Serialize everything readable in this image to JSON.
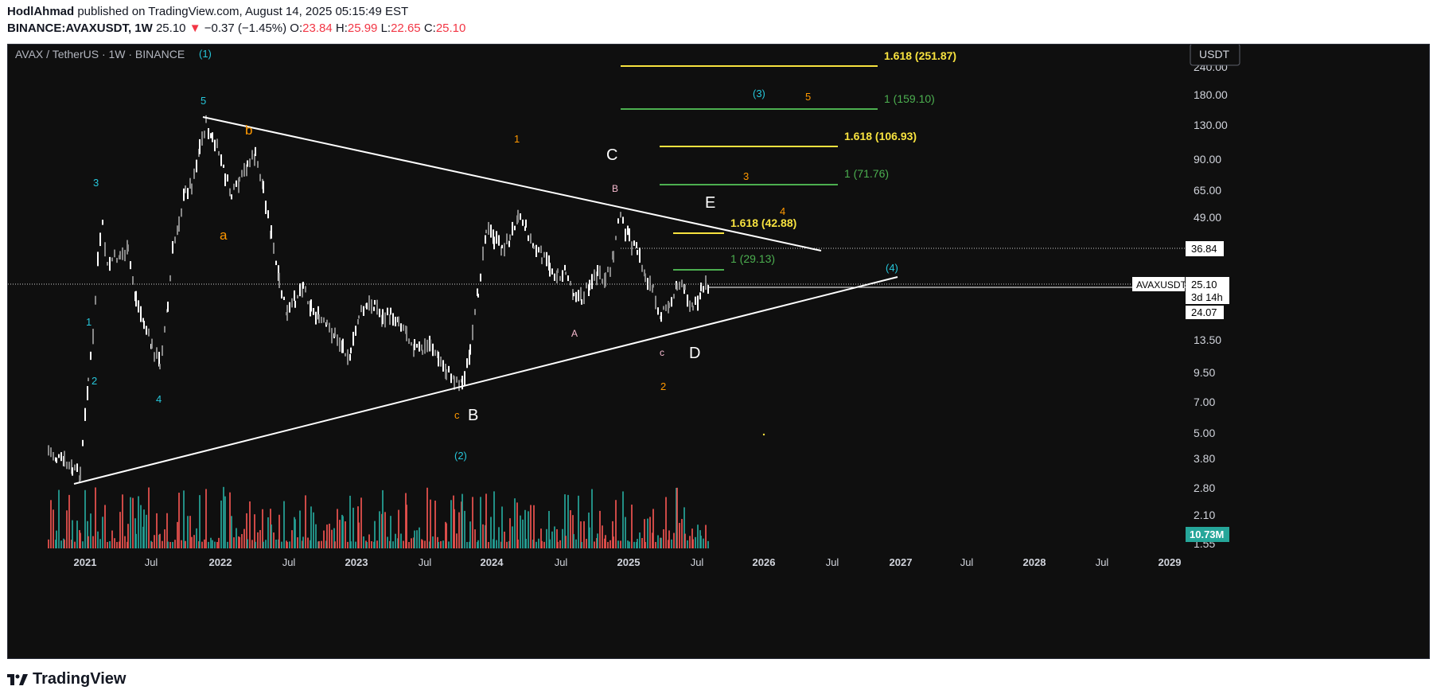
{
  "header": {
    "author": "HodlAhmad",
    "published": "published on TradingView.com, August 14, 2025 05:15:49 EST",
    "symbol": "BINANCE:AVAXUSDT, 1W",
    "last": "25.10",
    "change_arrow": "▼",
    "change": "−0.37 (−1.45%)",
    "o_label": "O:",
    "o": "23.84",
    "h_label": "H:",
    "h": "25.99",
    "l_label": "L:",
    "l": "22.65",
    "c_label": "C:",
    "c": "25.10"
  },
  "chart": {
    "legend": "AVAX / TetherUS · 1W · BINANCE",
    "currency_button": "USDT",
    "price_axis": [
      "240.00",
      "180.00",
      "130.00",
      "90.00",
      "65.00",
      "49.00",
      "36.84",
      "25.10",
      "13.50",
      "9.50",
      "7.00",
      "5.00",
      "3.80",
      "2.80",
      "2.10",
      "1.55"
    ],
    "time_axis": [
      "2021",
      "Jul",
      "2022",
      "Jul",
      "2023",
      "Jul",
      "2024",
      "Jul",
      "2025",
      "Jul",
      "2026",
      "Jul",
      "2027",
      "Jul",
      "2028",
      "Jul",
      "2029"
    ],
    "price_tags": {
      "symbol": "AVAXUSDT",
      "last": "25.10",
      "countdown": "3d 14h",
      "low": "24.07",
      "level": "36.84",
      "volume": "10.73M"
    },
    "fib_labels": {
      "f1": "1.618 (251.87)",
      "f2": "1 (159.10)",
      "f3": "1.618 (106.93)",
      "f4": "1 (71.76)",
      "f5": "1.618 (42.88)",
      "f6": "1 (29.13)"
    },
    "wave_labels": {
      "cyan": [
        "(1)",
        "5",
        "3",
        "1",
        "2",
        "4",
        "(2)",
        "(3)",
        "(4)"
      ],
      "orange": [
        "b",
        "a",
        "1",
        "3",
        "5",
        "4",
        "c",
        "2"
      ],
      "white": [
        "C",
        "E",
        "B",
        "D"
      ],
      "pink": [
        "B",
        "A",
        "c"
      ]
    },
    "colors": {
      "background": "#0f0f0f",
      "up": "#ffffff",
      "down": "#888888",
      "vol_up": "#26a69a",
      "vol_down": "#ef5350",
      "fib_yellow": "#f7e23f",
      "fib_green": "#4caf50",
      "cyan": "#26c6da",
      "orange": "#ff9800",
      "pink": "#f8bbd0"
    }
  },
  "footer": {
    "brand": "TradingView",
    "logo_icon": "tradingview-logo-icon"
  }
}
